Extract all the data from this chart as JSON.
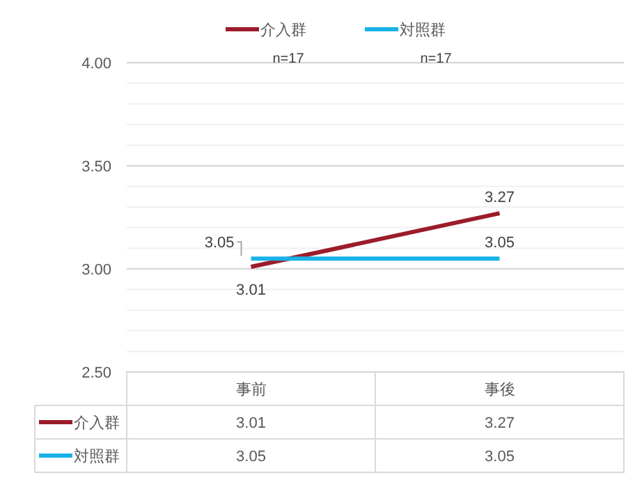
{
  "chart_data": {
    "type": "line",
    "categories": [
      "事前",
      "事後"
    ],
    "series": [
      {
        "name": "介入群",
        "color": "#9b1c2a",
        "values": [
          3.01,
          3.27
        ],
        "value_labels": [
          "3.01",
          "3.27"
        ]
      },
      {
        "name": "対照群",
        "color": "#19b2e8",
        "values": [
          3.05,
          3.05
        ],
        "value_labels": [
          "3.05",
          "3.05"
        ]
      }
    ],
    "ylim": [
      2.5,
      4.0
    ],
    "yticks": [
      {
        "value": 2.5,
        "label": "2.50"
      },
      {
        "value": 2.6,
        "label": null
      },
      {
        "value": 2.7,
        "label": null
      },
      {
        "value": 2.8,
        "label": null
      },
      {
        "value": 2.9,
        "label": null
      },
      {
        "value": 3.0,
        "label": "3.00"
      },
      {
        "value": 3.1,
        "label": null
      },
      {
        "value": 3.2,
        "label": null
      },
      {
        "value": 3.3,
        "label": null
      },
      {
        "value": 3.4,
        "label": null
      },
      {
        "value": 3.5,
        "label": "3.50"
      },
      {
        "value": 3.6,
        "label": null
      },
      {
        "value": 3.7,
        "label": null
      },
      {
        "value": 3.8,
        "label": null
      },
      {
        "value": 3.9,
        "label": null
      },
      {
        "value": 4.0,
        "label": "4.00"
      }
    ],
    "grid": "y",
    "legend": "top",
    "marker": "none",
    "line_style": "solid",
    "annotations": [
      "n=17",
      "n=17",
      "3.01",
      "3.27",
      "3.05",
      "3.05"
    ]
  }
}
